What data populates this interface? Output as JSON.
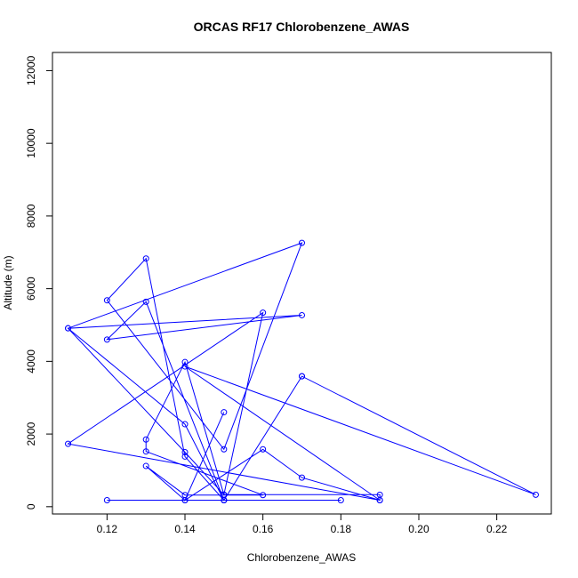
{
  "chart_data": {
    "type": "line",
    "title": "ORCAS RF17 Chlorobenzene_AWAS",
    "xlabel": "Chlorobenzene_AWAS",
    "ylabel": "Altitude (m)",
    "xlim": [
      0.106,
      0.234
    ],
    "ylim": [
      -200,
      12500
    ],
    "xticks": [
      0.12,
      0.14,
      0.16,
      0.18,
      0.2,
      0.22
    ],
    "xtick_labels": [
      "0.12",
      "0.14",
      "0.16",
      "0.18",
      "0.20",
      "0.22"
    ],
    "yticks": [
      0,
      2000,
      4000,
      6000,
      8000,
      10000,
      12000
    ],
    "ytick_labels": [
      "0",
      "2000",
      "4000",
      "6000",
      "8000",
      "10000",
      "12000"
    ],
    "series": [
      {
        "color": "#0000ff",
        "marker": "open-circle",
        "x": [
          0.12,
          0.15,
          0.18,
          0.15,
          0.14,
          0.13,
          0.14,
          0.16,
          0.13,
          0.13,
          0.14,
          0.15,
          0.15,
          0.16,
          0.11,
          0.19,
          0.19,
          0.15,
          0.14,
          0.11,
          0.17,
          0.15,
          0.12,
          0.13,
          0.14,
          0.15,
          0.13,
          0.12,
          0.17,
          0.11,
          0.14,
          0.15,
          0.17,
          0.17,
          0.23,
          0.14,
          0.19,
          0.17,
          0.16,
          0.14,
          0.15
        ],
        "y": [
          180,
          180,
          180,
          180,
          180,
          1120,
          320,
          320,
          1520,
          1850,
          3980,
          330,
          330,
          5340,
          1730,
          180,
          330,
          330,
          1500,
          4910,
          7260,
          1580,
          5680,
          6830,
          1380,
          180,
          5640,
          4600,
          5270,
          4910,
          2270,
          180,
          3590,
          3590,
          330,
          3860,
          180,
          800,
          1580,
          180,
          2600
        ]
      }
    ]
  }
}
